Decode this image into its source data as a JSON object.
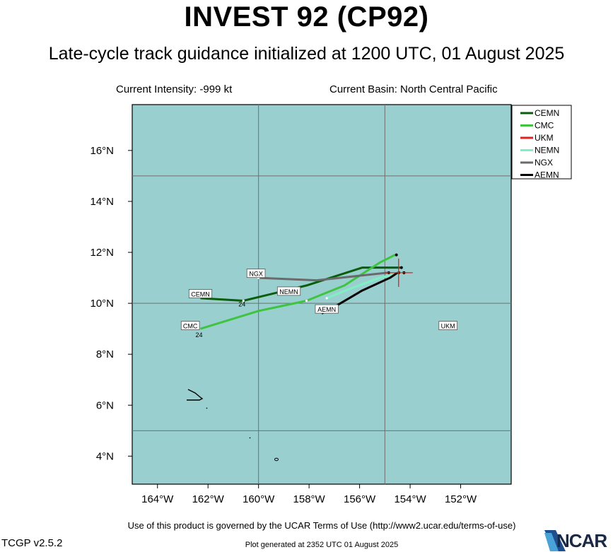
{
  "header": {
    "title": "INVEST 92 (CP92)",
    "subtitle": "Late-cycle track guidance initialized at 1200 UTC, 01 August 2025",
    "intensity": "Current Intensity: -999 kt",
    "basin": "Current Basin: North Central Pacific"
  },
  "footer": {
    "terms": "Use of this product is governed by the UCAR Terms of Use (http://www2.ucar.edu/terms-of-use)",
    "version": "TCGP v2.5.2",
    "generated": "Plot generated at 2352 UTC   01 August 2025",
    "logo_text": "NCAR"
  },
  "colors": {
    "ocean": "#99cfcf",
    "land": "#000000",
    "grid": "#6f6f6f"
  },
  "map": {
    "lon_range": [
      -165,
      -150
    ],
    "lat_range": [
      2.9,
      17.8
    ],
    "lon_ticks": [
      "164°W",
      "162°W",
      "160°W",
      "158°W",
      "156°W",
      "154°W",
      "152°W"
    ],
    "lat_ticks": [
      "16°N",
      "14°N",
      "12°N",
      "10°N",
      "8°N",
      "6°N",
      "4°N"
    ],
    "grid_lons": [
      -160,
      -155
    ],
    "grid_lats": [
      15,
      10,
      5
    ]
  },
  "chart_data": {
    "type": "track_map",
    "current_position": {
      "lon": -154.4,
      "lat": 11.2
    },
    "series": [
      {
        "name": "CEMN",
        "color": "#0b5d0b",
        "points": [
          [
            -154.4,
            11.4
          ],
          [
            -155.9,
            11.4
          ],
          [
            -158.1,
            10.7
          ],
          [
            -160.6,
            10.1
          ],
          [
            -162.3,
            10.2
          ]
        ],
        "label_24": "24"
      },
      {
        "name": "CMC",
        "color": "#3fc43f",
        "points": [
          [
            -154.6,
            11.9
          ],
          [
            -155.2,
            11.6
          ],
          [
            -156.6,
            10.7
          ],
          [
            -158.1,
            10.1
          ],
          [
            -160.0,
            9.7
          ],
          [
            -162.3,
            9.0
          ]
        ],
        "label_24": "24"
      },
      {
        "name": "UKM",
        "color": "#dd2222",
        "points": [
          [
            -154.3,
            11.2
          ]
        ]
      },
      {
        "name": "NEMN",
        "color": "#7ff0c4",
        "points": [
          [
            -154.3,
            11.2
          ],
          [
            -155.2,
            11.0
          ],
          [
            -156.3,
            10.6
          ],
          [
            -157.3,
            10.2
          ]
        ]
      },
      {
        "name": "NGX",
        "color": "#6a6a6a",
        "points": [
          [
            -154.9,
            11.2
          ],
          [
            -157.7,
            10.9
          ],
          [
            -160.0,
            11.0
          ]
        ]
      },
      {
        "name": "AEMN",
        "color": "#000000",
        "points": [
          [
            -154.5,
            11.2
          ],
          [
            -154.8,
            11.0
          ],
          [
            -155.9,
            10.5
          ],
          [
            -157.1,
            9.8
          ],
          [
            -157.5,
            9.6
          ]
        ]
      }
    ],
    "track_labels": [
      {
        "text": "CEMN",
        "lon": -162.3,
        "lat": 10.35
      },
      {
        "text": "CMC",
        "lon": -162.7,
        "lat": 9.1
      },
      {
        "text": "NGX",
        "lon": -160.1,
        "lat": 11.15
      },
      {
        "text": "NEMN",
        "lon": -158.8,
        "lat": 10.45
      },
      {
        "text": "AEMN",
        "lon": -157.3,
        "lat": 9.75
      },
      {
        "text": "UKM",
        "lon": -152.5,
        "lat": 9.1
      }
    ],
    "legend": [
      "CEMN",
      "CMC",
      "UKM",
      "NEMN",
      "NGX",
      "AEMN"
    ]
  }
}
